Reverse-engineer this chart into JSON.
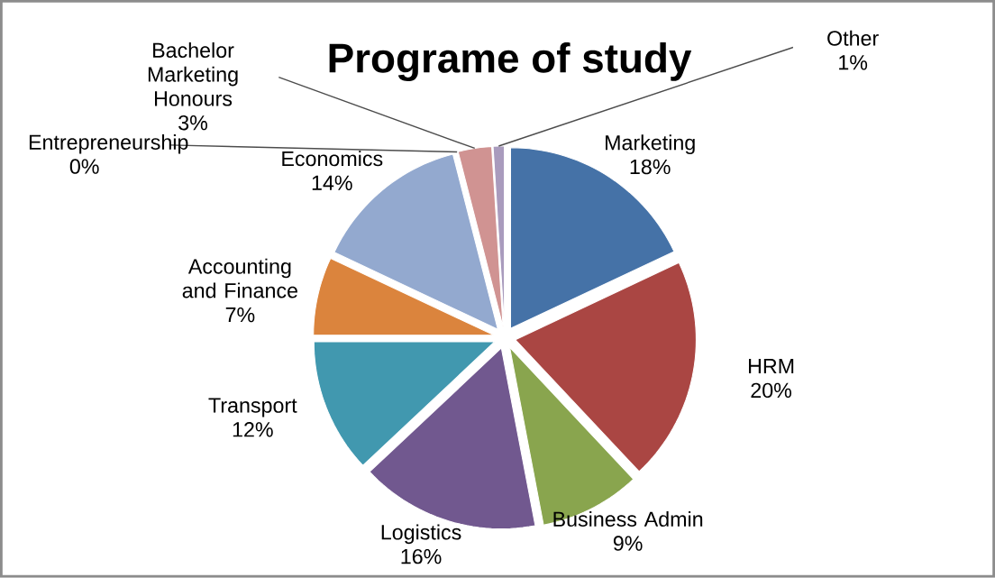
{
  "chart_data": {
    "type": "pie",
    "title": "Programe of study",
    "categories": [
      "Marketing",
      "HRM",
      "Business Admin",
      "Logistics",
      "Transport",
      "Accounting and Finance",
      "Economics",
      "Entrepreneurship",
      "Bachelor Marketing Honours",
      "Other"
    ],
    "values": [
      18,
      20,
      9,
      16,
      12,
      7,
      14,
      0,
      3,
      1
    ],
    "value_labels": [
      "18%",
      "20%",
      "9%",
      "16%",
      "12%",
      "7%",
      "14%",
      "0%",
      "3%",
      "1%"
    ],
    "colors": [
      "#4572a7",
      "#aa4643",
      "#89a54e",
      "#71588f",
      "#4198af",
      "#db843d",
      "#93a9cf",
      "#b9cd96",
      "#d09392",
      "#a99bbd"
    ]
  }
}
